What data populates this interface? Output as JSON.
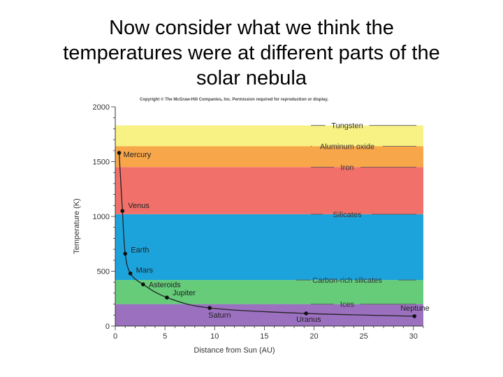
{
  "slide": {
    "title_lines": [
      "Now consider what we think the",
      "temperatures were at different parts of the",
      "solar nebula"
    ]
  },
  "chart_data": {
    "type": "line",
    "copyright": "Copyright © The McGraw-Hill Companies, Inc. Permission required for reproduction or display.",
    "xlabel": "Distance from Sun (AU)",
    "ylabel": "Temperature (K)",
    "xlim": [
      0,
      31
    ],
    "ylim": [
      0,
      2000
    ],
    "x_ticks": [
      0,
      5,
      10,
      15,
      20,
      25,
      30
    ],
    "y_ticks": [
      0,
      500,
      1000,
      1500,
      2000
    ],
    "grid": false,
    "bands": [
      {
        "label": "Ices",
        "from": 0,
        "to": 200,
        "color": "#9b70bf"
      },
      {
        "label": "Carbon-rich silicates",
        "from": 200,
        "to": 420,
        "color": "#66cc7a"
      },
      {
        "label": "Silicates",
        "from": 420,
        "to": 1020,
        "color": "#1ca3dc"
      },
      {
        "label": "Iron",
        "from": 1020,
        "to": 1450,
        "color": "#f2706a"
      },
      {
        "label": "Aluminum oxide",
        "from": 1450,
        "to": 1640,
        "color": "#f8a64a"
      },
      {
        "label": "Tungsten",
        "from": 1640,
        "to": 1830,
        "color": "#f8f183"
      }
    ],
    "band_label_values": {
      "Tungsten": 1830,
      "Aluminum oxide": 1640,
      "Iron": 1450,
      "Silicates": 1020,
      "Carbon-rich silicates": 420,
      "Ices": 200
    },
    "series": [
      {
        "x": [
          0.39,
          0.72,
          1.0,
          1.52,
          2.8,
          5.2,
          9.5,
          19.2,
          30.1
        ],
        "y": [
          1580,
          1050,
          660,
          480,
          380,
          260,
          165,
          115,
          90
        ]
      }
    ],
    "points": [
      {
        "label": "Mercury",
        "x": 0.39,
        "y": 1580
      },
      {
        "label": "Venus",
        "x": 0.72,
        "y": 1050
      },
      {
        "label": "Earth",
        "x": 1.0,
        "y": 660
      },
      {
        "label": "Mars",
        "x": 1.52,
        "y": 480
      },
      {
        "label": "Asteroids",
        "x": 2.8,
        "y": 380
      },
      {
        "label": "Jupiter",
        "x": 5.2,
        "y": 260
      },
      {
        "label": "Saturn",
        "x": 9.5,
        "y": 165
      },
      {
        "label": "Uranus",
        "x": 19.2,
        "y": 115
      },
      {
        "label": "Neptune",
        "x": 30.1,
        "y": 90
      }
    ]
  }
}
